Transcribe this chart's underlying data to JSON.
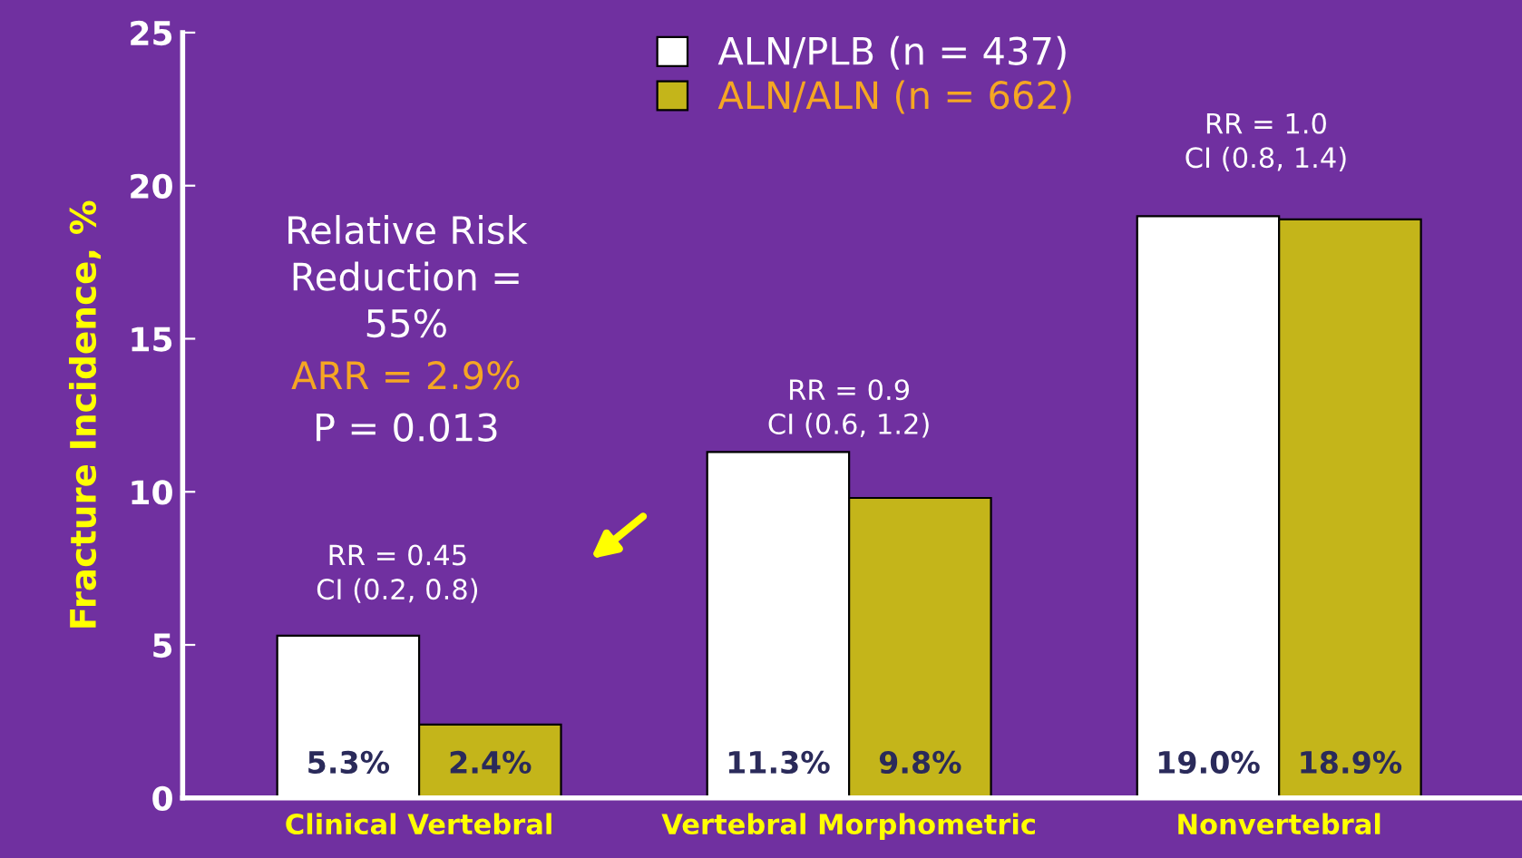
{
  "chart_data": {
    "type": "bar",
    "ylabel": "Fracture Incidence, %",
    "categories": [
      "Clinical Vertebral",
      "Vertebral Morphometric",
      "Nonvertebral"
    ],
    "series": [
      {
        "name": "ALN/PLB (n = 437)",
        "color": "#ffffff",
        "values": [
          5.3,
          11.3,
          19.0
        ],
        "value_labels": [
          "5.3%",
          "11.3%",
          "19.0%"
        ]
      },
      {
        "name": "ALN/ALN (n = 662)",
        "color": "#c4b51a",
        "values": [
          2.4,
          9.8,
          18.9
        ],
        "value_labels": [
          "2.4%",
          "9.8%",
          "18.9%"
        ]
      }
    ],
    "ylim": [
      0,
      25
    ],
    "yticks": [
      0,
      5,
      10,
      15,
      20,
      25
    ],
    "grid": false,
    "legend": "top",
    "annotations": [
      "RR = 0.45\nCI (0.2, 0.8)",
      "RR = 0.9\nCI (0.6, 1.2)",
      "RR = 1.0\nCI (0.8, 1.4)",
      "Relative Risk\nReduction =\n55%",
      "ARR = 2.9%",
      "P = 0.013"
    ]
  }
}
